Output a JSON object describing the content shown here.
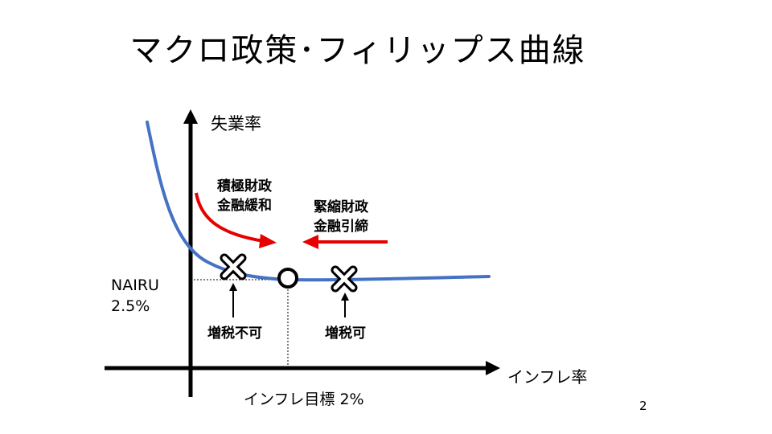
{
  "title": "マクロ政策･フィリップス曲線",
  "axes": {
    "y_label": "失業率",
    "x_label": "インフレ率"
  },
  "nairu": {
    "name": "NAIRU",
    "value": "2.5%"
  },
  "inflation_target": "インフレ目標 2%",
  "policies": {
    "expansionary": [
      "積極財政",
      "金融緩和"
    ],
    "contractionary": [
      "緊縮財政",
      "金融引締"
    ]
  },
  "markers": {
    "left_cross": "増税不可",
    "right_cross": "増税可"
  },
  "colors": {
    "curve": "#4472c4",
    "arrows": "#e60000",
    "axes": "#000000"
  },
  "page_number": "2"
}
